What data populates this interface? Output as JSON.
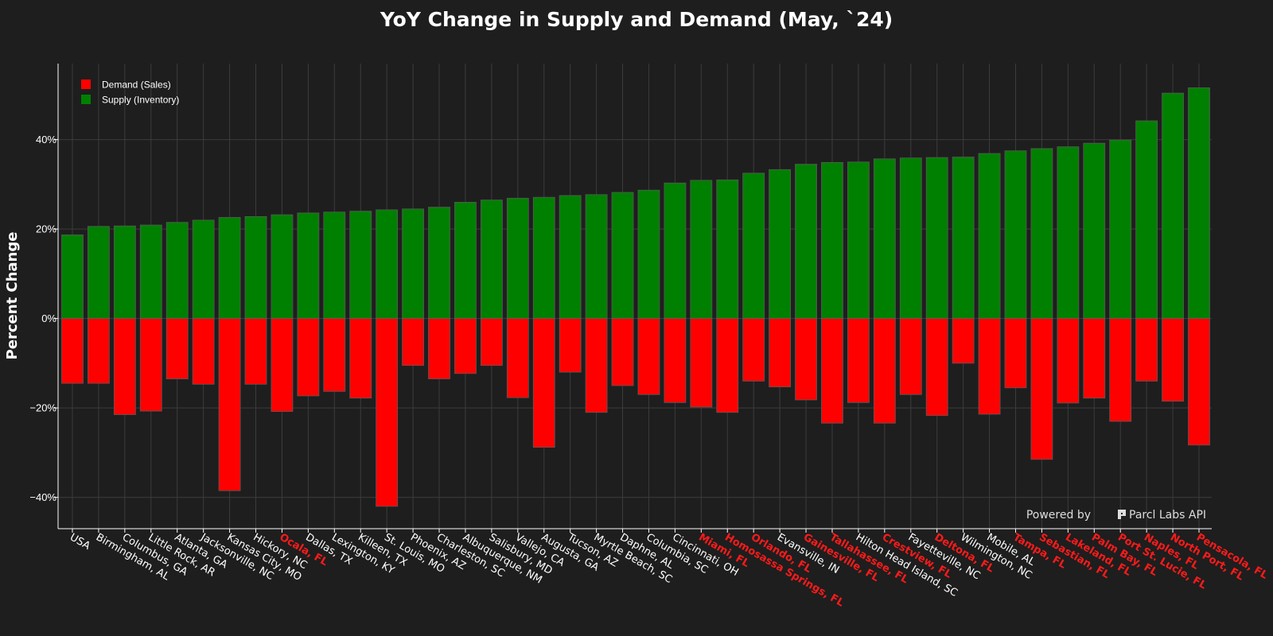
{
  "chart_data": {
    "type": "bar",
    "title": "YoY Change in Supply and Demand (May, `24)",
    "ylabel": "Percent Change",
    "xlabel": "",
    "ylim": [
      -47,
      57
    ],
    "yticks": [
      -40,
      -20,
      0,
      20,
      40
    ],
    "ytick_labels": [
      "−40%",
      "−20%",
      "0%",
      "20%",
      "40%"
    ],
    "grid": true,
    "legend_position": "top-left",
    "categories": [
      "USA",
      "Birmingham, AL",
      "Columbus, GA",
      "Little Rock, AR",
      "Atlanta, GA",
      "Jacksonville, NC",
      "Kansas City, MO",
      "Hickory, NC",
      "Ocala, FL",
      "Dallas, TX",
      "Lexington, KY",
      "Killeen, TX",
      "St. Louis, MO",
      "Phoenix, AZ",
      "Charleston, SC",
      "Albuquerque, NM",
      "Salisbury, MD",
      "Vallejo, CA",
      "Augusta, GA",
      "Tucson, AZ",
      "Myrtle Beach, SC",
      "Daphne, AL",
      "Columbia, SC",
      "Cincinnati, OH",
      "Miami, FL",
      "Homosassa Springs, FL",
      "Orlando, FL",
      "Evansville, IN",
      "Gainesville, FL",
      "Tallahassee, FL",
      "Hilton Head Island, SC",
      "Crestview, FL",
      "Fayetteville, NC",
      "Deltona, FL",
      "Wilmington, NC",
      "Mobile, AL",
      "Tampa, FL",
      "Sebastian, FL",
      "Lakeland, FL",
      "Palm Bay, FL",
      "Port St. Lucie, FL",
      "Naples, FL",
      "North Port, FL",
      "Pensacola, FL"
    ],
    "highlighted": [
      false,
      false,
      false,
      false,
      false,
      false,
      false,
      false,
      true,
      false,
      false,
      false,
      false,
      false,
      false,
      false,
      false,
      false,
      false,
      false,
      false,
      false,
      false,
      false,
      true,
      true,
      true,
      false,
      true,
      true,
      false,
      true,
      false,
      true,
      false,
      false,
      true,
      true,
      true,
      true,
      true,
      true,
      true,
      true
    ],
    "highlight_color": "#ff1a1a",
    "series": [
      {
        "name": "Demand (Sales)",
        "color": "#ff0000",
        "values": [
          -14.5,
          -14.5,
          -21.5,
          -20.7,
          -13.5,
          -14.7,
          -38.5,
          -14.7,
          -20.8,
          -17.3,
          -16.3,
          -17.8,
          -42.0,
          -10.5,
          -13.5,
          -12.3,
          -10.5,
          -17.7,
          -28.8,
          -12.0,
          -21.0,
          -15.0,
          -17.0,
          -18.8,
          -19.8,
          -21.0,
          -14.0,
          -15.3,
          -18.2,
          -23.4,
          -18.8,
          -23.4,
          -17.0,
          -21.7,
          -10.0,
          -21.4,
          -15.5,
          -31.5,
          -18.9,
          -17.8,
          -23.0,
          -14.0,
          -18.5,
          -28.3
        ]
      },
      {
        "name": "Supply (Inventory)",
        "color": "#008000",
        "values": [
          18.7,
          20.6,
          20.7,
          20.9,
          21.5,
          22.0,
          22.6,
          22.8,
          23.2,
          23.6,
          23.8,
          24.0,
          24.3,
          24.5,
          24.9,
          26.0,
          26.5,
          26.9,
          27.1,
          27.5,
          27.7,
          28.2,
          28.7,
          30.3,
          30.9,
          31.0,
          32.5,
          33.3,
          34.5,
          34.9,
          35.0,
          35.7,
          35.9,
          36.0,
          36.1,
          36.9,
          37.5,
          38.0,
          38.4,
          39.2,
          39.9,
          44.2,
          50.4,
          51.6
        ]
      }
    ]
  },
  "watermark": {
    "prefix": "Powered by",
    "brand": "Parcl Labs API",
    "icon": "parcl-logo-icon"
  }
}
